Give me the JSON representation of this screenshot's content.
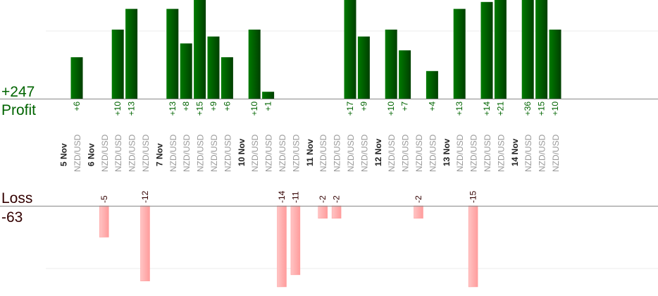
{
  "chart_data": {
    "type": "bar",
    "title": "",
    "profit": {
      "label": "Profit",
      "total": "+247",
      "color": "#006400",
      "gridline_value": 10
    },
    "loss": {
      "label": "Loss",
      "total": "-63",
      "color": "#ffaaaa",
      "gridline_value": -10
    },
    "dates": [
      {
        "label": "5 Nov",
        "after_index": 0
      },
      {
        "label": "6 Nov",
        "after_index": 1
      },
      {
        "label": "7 Nov",
        "after_index": 5
      },
      {
        "label": "10 Nov",
        "after_index": 10
      },
      {
        "label": "11 Nov",
        "after_index": 14
      },
      {
        "label": "12 Nov",
        "after_index": 18
      },
      {
        "label": "13 Nov",
        "after_index": 22
      },
      {
        "label": "14 Nov",
        "after_index": 26
      }
    ],
    "trades": [
      {
        "symbol": "NZD/USD",
        "value": 6
      },
      {
        "symbol": "NZD/USD",
        "value": -5
      },
      {
        "symbol": "NZD/USD",
        "value": 10
      },
      {
        "symbol": "NZD/USD",
        "value": 13
      },
      {
        "symbol": "NZD/USD",
        "value": -12
      },
      {
        "symbol": "NZD/USD",
        "value": 13
      },
      {
        "symbol": "NZD/USD",
        "value": 8
      },
      {
        "symbol": "NZD/USD",
        "value": 15
      },
      {
        "symbol": "NZD/USD",
        "value": 9
      },
      {
        "symbol": "NZD/USD",
        "value": 6
      },
      {
        "symbol": "NZD/USD",
        "value": 10
      },
      {
        "symbol": "NZD/USD",
        "value": 1
      },
      {
        "symbol": "NZD/USD",
        "value": -14
      },
      {
        "symbol": "NZD/USD",
        "value": -11
      },
      {
        "symbol": "NZD/USD",
        "value": -2
      },
      {
        "symbol": "NZD/USD",
        "value": -2
      },
      {
        "symbol": "NZD/USD",
        "value": 17
      },
      {
        "symbol": "NZD/USD",
        "value": 9
      },
      {
        "symbol": "NZD/USD",
        "value": 10
      },
      {
        "symbol": "NZD/USD",
        "value": 7
      },
      {
        "symbol": "NZD/USD",
        "value": -2
      },
      {
        "symbol": "NZD/USD",
        "value": 4
      },
      {
        "symbol": "NZD/USD",
        "value": 13
      },
      {
        "symbol": "NZD/USD",
        "value": -15
      },
      {
        "symbol": "NZD/USD",
        "value": 14
      },
      {
        "symbol": "NZD/USD",
        "value": 21
      },
      {
        "symbol": "NZD/USD",
        "value": 36
      },
      {
        "symbol": "NZD/USD",
        "value": 15
      },
      {
        "symbol": "NZD/USD",
        "value": 10
      }
    ]
  }
}
